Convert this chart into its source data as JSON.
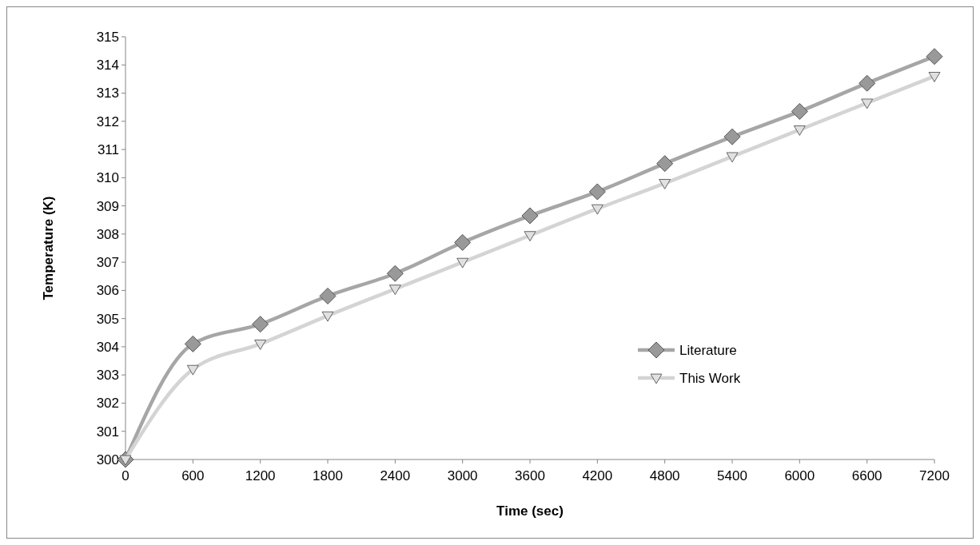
{
  "chart_data": {
    "type": "line",
    "xlabel": "Time (sec)",
    "ylabel": "Temperature (K)",
    "x": [
      0,
      600,
      1200,
      1800,
      2400,
      3000,
      3600,
      4200,
      4800,
      5400,
      6000,
      6600,
      7200
    ],
    "series": [
      {
        "name": "Literature",
        "color": "#a6a6a6",
        "marker": "diamond",
        "values": [
          300,
          304.1,
          304.8,
          305.8,
          306.6,
          307.7,
          308.65,
          309.5,
          310.5,
          311.45,
          312.35,
          313.35,
          314.3
        ]
      },
      {
        "name": "This Work",
        "color": "#d4d4d4",
        "marker": "triangle",
        "values": [
          300,
          303.2,
          304.1,
          305.1,
          306.05,
          307.0,
          307.95,
          308.9,
          309.8,
          310.75,
          311.7,
          312.65,
          313.6
        ]
      }
    ],
    "xlim": [
      0,
      7200
    ],
    "xticks": [
      0,
      600,
      1200,
      1800,
      2400,
      3000,
      3600,
      4200,
      4800,
      5400,
      6000,
      6600,
      7200
    ],
    "ylim": [
      300,
      315
    ],
    "yticks": [
      300,
      301,
      302,
      303,
      304,
      305,
      306,
      307,
      308,
      309,
      310,
      311,
      312,
      313,
      314,
      315
    ],
    "grid": false,
    "legend": "right",
    "line_style": "solid"
  }
}
